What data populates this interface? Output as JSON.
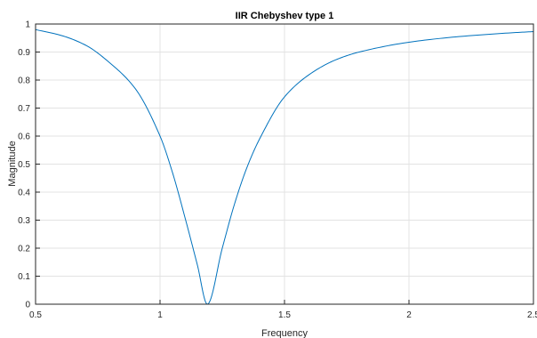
{
  "chart_data": {
    "type": "line",
    "title": "IIR Chebyshev type 1",
    "xlabel": "Frequency",
    "ylabel": "Magnitude",
    "xlim": [
      0.5,
      2.5
    ],
    "ylim": [
      0,
      1
    ],
    "xticks": [
      0.5,
      1,
      1.5,
      2,
      2.5
    ],
    "xtick_labels": [
      "0.5",
      "1",
      "1.5",
      "2",
      "2.5"
    ],
    "yticks": [
      0,
      0.1,
      0.2,
      0.3,
      0.4,
      0.5,
      0.6,
      0.7,
      0.8,
      0.9,
      1
    ],
    "ytick_labels": [
      "0",
      "0.1",
      "0.2",
      "0.3",
      "0.4",
      "0.5",
      "0.6",
      "0.7",
      "0.8",
      "0.9",
      "1"
    ],
    "grid": true,
    "line_color": "#0072BD",
    "series": [
      {
        "x": [
          0.5,
          0.6,
          0.7,
          0.8,
          0.9,
          1.0,
          1.05,
          1.1,
          1.15,
          1.19,
          1.25,
          1.3,
          1.35,
          1.4,
          1.5,
          1.6,
          1.7,
          1.8,
          2.0,
          2.2,
          2.4,
          2.5
        ],
        "y": [
          0.98,
          0.96,
          0.925,
          0.86,
          0.77,
          0.6,
          0.47,
          0.31,
          0.14,
          0.0,
          0.2,
          0.36,
          0.49,
          0.59,
          0.74,
          0.82,
          0.87,
          0.9,
          0.935,
          0.955,
          0.968,
          0.973
        ]
      }
    ]
  }
}
